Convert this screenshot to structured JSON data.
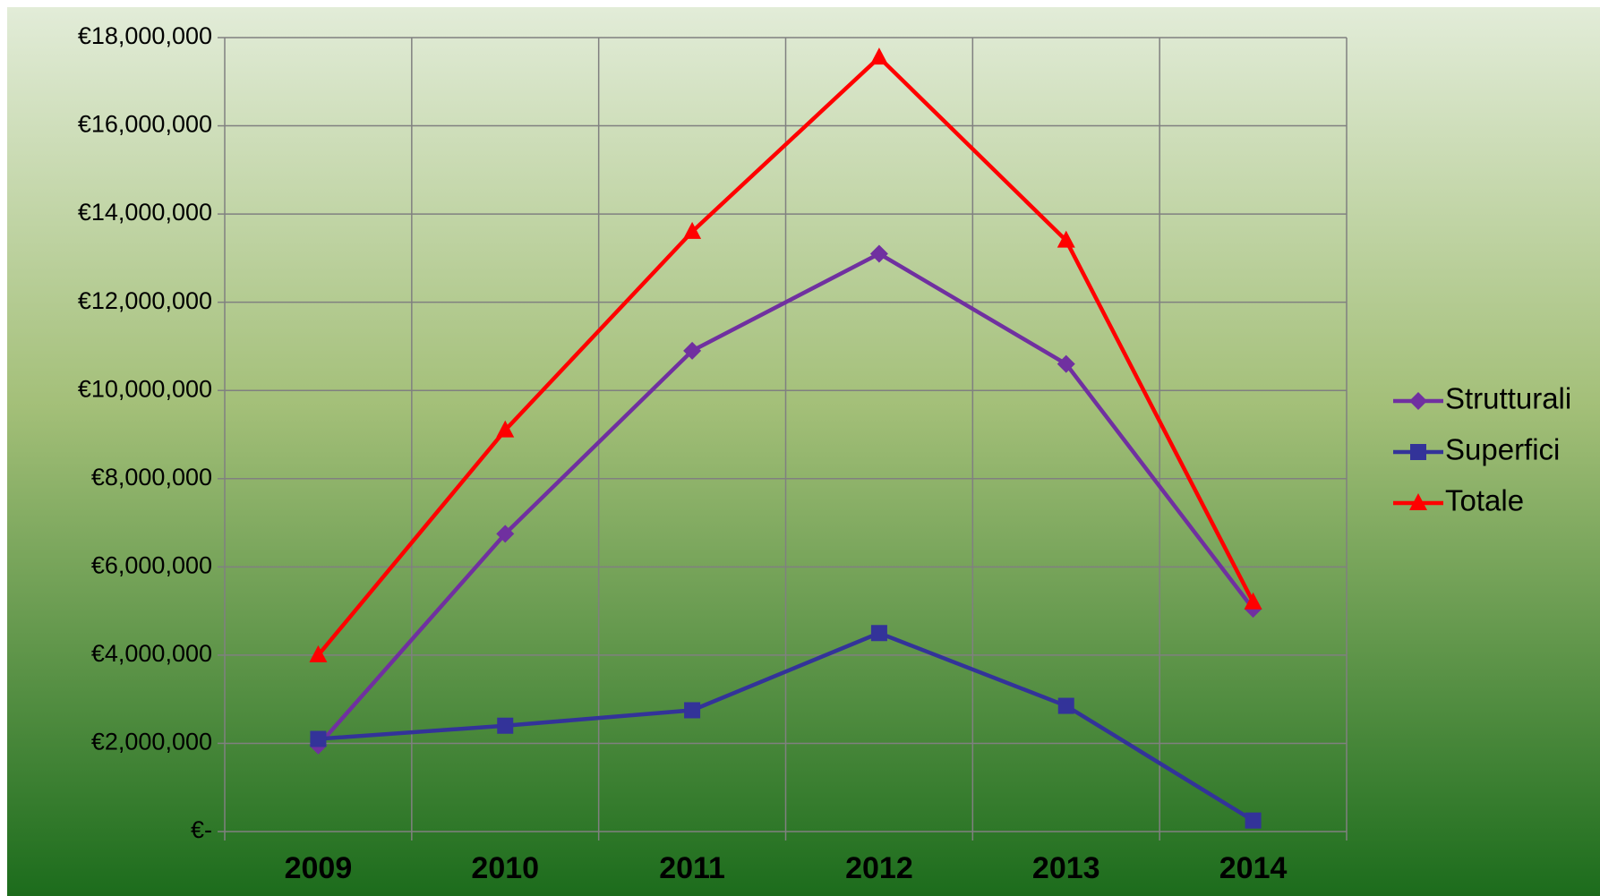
{
  "chart_data": {
    "type": "line",
    "categories": [
      "2009",
      "2010",
      "2011",
      "2012",
      "2013",
      "2014"
    ],
    "series": [
      {
        "name": "Strutturali",
        "color": "#7030a0",
        "marker": "diamond",
        "values": [
          1950000,
          6750000,
          10900000,
          13100000,
          10600000,
          5050000
        ]
      },
      {
        "name": "Superfici",
        "color": "#333399",
        "marker": "square",
        "values": [
          2100000,
          2400000,
          2750000,
          4500000,
          2850000,
          250000
        ]
      },
      {
        "name": "Totale",
        "color": "#ff0000",
        "marker": "triangle",
        "values": [
          4000000,
          9100000,
          13600000,
          17550000,
          13400000,
          5200000
        ]
      }
    ],
    "ylim": [
      0,
      18000000
    ],
    "yticks": [
      {
        "value": 0,
        "label": "€-"
      },
      {
        "value": 2000000,
        "label": "€2,000,000"
      },
      {
        "value": 4000000,
        "label": "€4,000,000"
      },
      {
        "value": 6000000,
        "label": "€6,000,000"
      },
      {
        "value": 8000000,
        "label": "€8,000,000"
      },
      {
        "value": 10000000,
        "label": "€10,000,000"
      },
      {
        "value": 12000000,
        "label": "€12,000,000"
      },
      {
        "value": 14000000,
        "label": "€14,000,000"
      },
      {
        "value": 16000000,
        "label": "€16,000,000"
      },
      {
        "value": 18000000,
        "label": "€18,000,000"
      }
    ],
    "grid": true,
    "legend": "right"
  }
}
